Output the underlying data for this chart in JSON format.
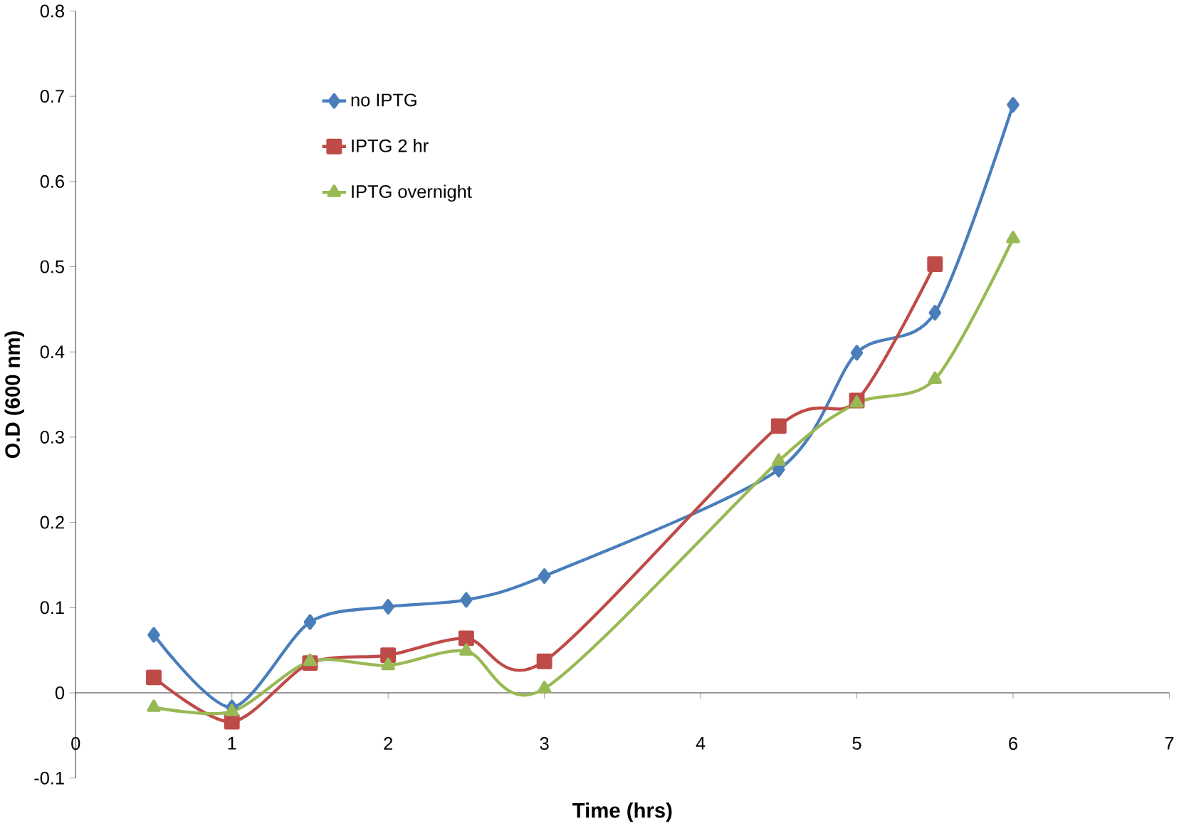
{
  "chart_data": {
    "type": "line",
    "xlabel": "Time (hrs)",
    "ylabel": "O.D (600 nm)",
    "xlim": [
      0,
      7
    ],
    "xticks": [
      0,
      1,
      2,
      3,
      4,
      5,
      6,
      7
    ],
    "ylim": [
      -0.1,
      0.8
    ],
    "yticks": [
      -0.1,
      0,
      0.1,
      0.2,
      0.3,
      0.4,
      0.5,
      0.6,
      0.7,
      0.8
    ],
    "grid": false,
    "legend": "top left",
    "line_style": "solid",
    "series": [
      {
        "name": "no IPTG",
        "color": "#4a7ebb",
        "marker": "diamond",
        "x": [
          0.5,
          1,
          1.5,
          2,
          2.5,
          3,
          4.5,
          5,
          5.5,
          6
        ],
        "values": [
          0.068,
          -0.017,
          0.083,
          0.101,
          0.109,
          0.137,
          0.262,
          0.399,
          0.446,
          0.69
        ]
      },
      {
        "name": "IPTG 2 hr",
        "color": "#be4b48",
        "marker": "square",
        "x": [
          0.5,
          1,
          1.5,
          2,
          2.5,
          3,
          4.5,
          5,
          5.5
        ],
        "values": [
          0.018,
          -0.034,
          0.035,
          0.044,
          0.064,
          0.037,
          0.313,
          0.343,
          0.503
        ]
      },
      {
        "name": "IPTG overnight",
        "color": "#98b954",
        "marker": "triangle",
        "x": [
          0.5,
          1,
          1.5,
          2,
          2.5,
          3,
          4.5,
          5,
          5.5,
          6
        ],
        "values": [
          -0.017,
          -0.022,
          0.037,
          0.032,
          0.049,
          0.005,
          0.272,
          0.34,
          0.368,
          0.533
        ]
      }
    ]
  }
}
